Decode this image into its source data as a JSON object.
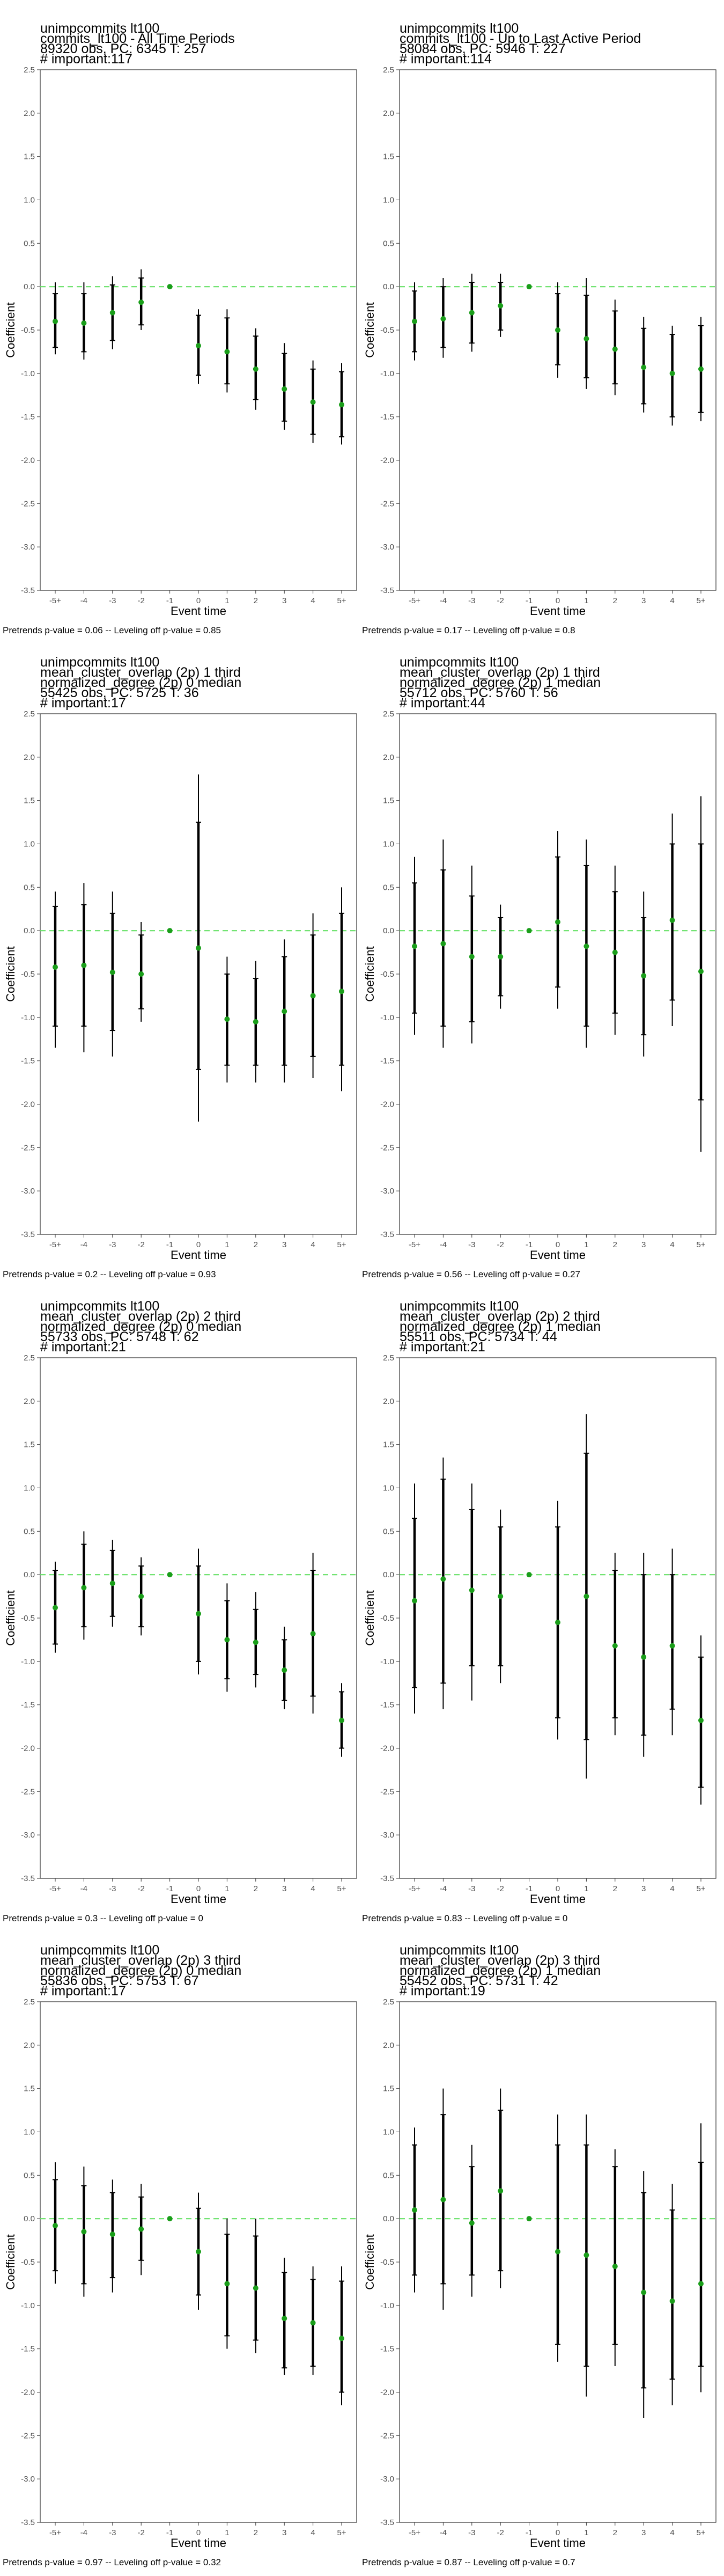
{
  "figure": {
    "xlabel": "Event time",
    "ylabel": "Coefficient"
  },
  "chart_data": [
    {
      "type": "scatter",
      "title_lines": [
        " unimpcommits lt100",
        "commits_lt100 - All Time Periods",
        "89320 obs, PC: 6345 T: 257",
        "# important:117"
      ],
      "caption": "Pretrends p-value = 0.06 -- Leveling off p-value = 0.85",
      "categories": [
        "-5+",
        "-4",
        "-3",
        "-2",
        "-1",
        "0",
        "1",
        "2",
        "3",
        "4",
        "5+"
      ],
      "estimates": [
        -0.4,
        -0.42,
        -0.3,
        -0.18,
        0.0,
        -0.68,
        -0.75,
        -0.95,
        -1.18,
        -1.33,
        -1.36
      ],
      "ci_outer_low": [
        -0.78,
        -0.84,
        -0.72,
        -0.5,
        null,
        -1.12,
        -1.22,
        -1.42,
        -1.65,
        -1.8,
        -1.82
      ],
      "ci_outer_high": [
        0.05,
        0.05,
        0.12,
        0.2,
        null,
        -0.26,
        -0.26,
        -0.48,
        -0.65,
        -0.85,
        -0.88
      ],
      "ci_inner_low": [
        -0.7,
        -0.75,
        -0.62,
        -0.44,
        null,
        -1.02,
        -1.12,
        -1.3,
        -1.55,
        -1.7,
        -1.73
      ],
      "ci_inner_high": [
        -0.08,
        -0.08,
        0.02,
        0.1,
        null,
        -0.33,
        -0.36,
        -0.57,
        -0.77,
        -0.95,
        -0.98
      ],
      "ylim": [
        -3.5,
        2.5
      ],
      "yticks": [
        "2.5",
        "2.0",
        "1.5",
        "1.0",
        "0.5",
        "0.0",
        "-0.5",
        "-1.0",
        "-1.5",
        "-2.0",
        "-2.5",
        "-3.0",
        "-3.5"
      ],
      "reference_line_y": 0,
      "colors": {
        "point": "#1a9e1a",
        "ci": "#000000",
        "reference": "#66e066"
      }
    },
    {
      "type": "scatter",
      "title_lines": [
        " unimpcommits lt100",
        "commits_lt100 - Up to Last Active Period",
        "58084 obs, PC: 5946 T: 227",
        "# important:114"
      ],
      "caption": "Pretrends p-value = 0.17 -- Leveling off p-value = 0.8",
      "categories": [
        "-5+",
        "-4",
        "-3",
        "-2",
        "-1",
        "0",
        "1",
        "2",
        "3",
        "4",
        "5+"
      ],
      "estimates": [
        -0.4,
        -0.37,
        -0.3,
        -0.22,
        0.0,
        -0.5,
        -0.6,
        -0.72,
        -0.93,
        -1.0,
        -0.95
      ],
      "ci_outer_low": [
        -0.85,
        -0.82,
        -0.75,
        -0.58,
        null,
        -1.05,
        -1.18,
        -1.25,
        -1.45,
        -1.6,
        -1.55
      ],
      "ci_outer_high": [
        0.05,
        0.1,
        0.15,
        0.15,
        null,
        0.05,
        0.1,
        -0.15,
        -0.35,
        -0.45,
        -0.35
      ],
      "ci_inner_low": [
        -0.75,
        -0.7,
        -0.65,
        -0.5,
        null,
        -0.9,
        -1.05,
        -1.12,
        -1.35,
        -1.5,
        -1.45
      ],
      "ci_inner_high": [
        -0.05,
        0.0,
        0.05,
        0.05,
        null,
        -0.08,
        -0.1,
        -0.28,
        -0.48,
        -0.55,
        -0.45
      ],
      "ylim": [
        -3.5,
        2.5
      ],
      "yticks": [
        "2.5",
        "2.0",
        "1.5",
        "1.0",
        "0.5",
        "0.0",
        "-0.5",
        "-1.0",
        "-1.5",
        "-2.0",
        "-2.5",
        "-3.0",
        "-3.5"
      ],
      "reference_line_y": 0,
      "colors": {
        "point": "#1a9e1a",
        "ci": "#000000",
        "reference": "#66e066"
      }
    },
    {
      "type": "scatter",
      "title_lines": [
        " unimpcommits lt100",
        "mean_cluster_overlap (2p) 1 third",
        "normalized_degree (2p) 0 median",
        "55425 obs, PC: 5725 T: 36",
        "# important:17"
      ],
      "caption": "Pretrends p-value = 0.2 -- Leveling off p-value = 0.93",
      "categories": [
        "-5+",
        "-4",
        "-3",
        "-2",
        "-1",
        "0",
        "1",
        "2",
        "3",
        "4",
        "5+"
      ],
      "estimates": [
        -0.42,
        -0.4,
        -0.48,
        -0.5,
        0.0,
        -0.2,
        -1.02,
        -1.05,
        -0.93,
        -0.75,
        -0.7
      ],
      "ci_outer_low": [
        -1.35,
        -1.4,
        -1.45,
        -1.05,
        null,
        -2.2,
        -1.75,
        -1.75,
        -1.75,
        -1.7,
        -1.85
      ],
      "ci_outer_high": [
        0.45,
        0.55,
        0.45,
        0.1,
        null,
        1.8,
        -0.3,
        -0.35,
        -0.1,
        0.2,
        0.5
      ],
      "ci_inner_low": [
        -1.1,
        -1.1,
        -1.15,
        -0.9,
        null,
        -1.6,
        -1.55,
        -1.55,
        -1.55,
        -1.45,
        -1.55
      ],
      "ci_inner_high": [
        0.28,
        0.3,
        0.2,
        -0.05,
        null,
        1.25,
        -0.5,
        -0.55,
        -0.3,
        -0.05,
        0.2
      ],
      "ylim": [
        -3.5,
        2.5
      ],
      "yticks": [
        "2.5",
        "2.0",
        "1.5",
        "1.0",
        "0.5",
        "0.0",
        "-0.5",
        "-1.0",
        "-1.5",
        "-2.0",
        "-2.5",
        "-3.0",
        "-3.5"
      ],
      "reference_line_y": 0,
      "colors": {
        "point": "#1a9e1a",
        "ci": "#000000",
        "reference": "#66e066"
      }
    },
    {
      "type": "scatter",
      "title_lines": [
        " unimpcommits lt100",
        "mean_cluster_overlap (2p) 1 third",
        "normalized_degree (2p) 1 median",
        "55712 obs, PC: 5760 T: 56",
        "# important:44"
      ],
      "caption": "Pretrends p-value = 0.56 -- Leveling off p-value = 0.27",
      "categories": [
        "-5+",
        "-4",
        "-3",
        "-2",
        "-1",
        "0",
        "1",
        "2",
        "3",
        "4",
        "5+"
      ],
      "estimates": [
        -0.18,
        -0.15,
        -0.3,
        -0.3,
        0.0,
        0.1,
        -0.18,
        -0.25,
        -0.52,
        0.12,
        -0.47
      ],
      "ci_outer_low": [
        -1.2,
        -1.35,
        -1.3,
        -0.9,
        null,
        -0.9,
        -1.35,
        -1.2,
        -1.45,
        -1.1,
        -2.55
      ],
      "ci_outer_high": [
        0.85,
        1.05,
        0.75,
        0.3,
        null,
        1.15,
        1.05,
        0.75,
        0.45,
        1.35,
        1.55
      ],
      "ci_inner_low": [
        -0.95,
        -1.1,
        -1.05,
        -0.75,
        null,
        -0.65,
        -1.1,
        -0.95,
        -1.2,
        -0.8,
        -1.95
      ],
      "ci_inner_high": [
        0.55,
        0.7,
        0.4,
        0.15,
        null,
        0.85,
        0.75,
        0.45,
        0.15,
        1.0,
        1.0
      ],
      "ylim": [
        -3.5,
        2.5
      ],
      "yticks": [
        "2.5",
        "2.0",
        "1.5",
        "1.0",
        "0.5",
        "0.0",
        "-0.5",
        "-1.0",
        "-1.5",
        "-2.0",
        "-2.5",
        "-3.0",
        "-3.5"
      ],
      "reference_line_y": 0,
      "colors": {
        "point": "#1a9e1a",
        "ci": "#000000",
        "reference": "#66e066"
      }
    },
    {
      "type": "scatter",
      "title_lines": [
        " unimpcommits lt100",
        "mean_cluster_overlap (2p) 2 third",
        "normalized_degree (2p) 0 median",
        "55733 obs, PC: 5748 T: 62",
        "# important:21"
      ],
      "caption": "Pretrends p-value = 0.3 -- Leveling off p-value = 0",
      "categories": [
        "-5+",
        "-4",
        "-3",
        "-2",
        "-1",
        "0",
        "1",
        "2",
        "3",
        "4",
        "5+"
      ],
      "estimates": [
        -0.38,
        -0.15,
        -0.1,
        -0.25,
        0.0,
        -0.45,
        -0.75,
        -0.78,
        -1.1,
        -0.68,
        -1.68
      ],
      "ci_outer_low": [
        -0.9,
        -0.75,
        -0.6,
        -0.7,
        null,
        -1.15,
        -1.35,
        -1.3,
        -1.55,
        -1.6,
        -2.1
      ],
      "ci_outer_high": [
        0.15,
        0.5,
        0.4,
        0.2,
        null,
        0.3,
        -0.1,
        -0.2,
        -0.6,
        0.25,
        -1.25
      ],
      "ci_inner_low": [
        -0.8,
        -0.6,
        -0.48,
        -0.6,
        null,
        -1.0,
        -1.2,
        -1.15,
        -1.45,
        -1.4,
        -2.0
      ],
      "ci_inner_high": [
        0.05,
        0.35,
        0.28,
        0.1,
        null,
        0.1,
        -0.3,
        -0.4,
        -0.75,
        0.05,
        -1.35
      ],
      "ylim": [
        -3.5,
        2.5
      ],
      "yticks": [
        "2.5",
        "2.0",
        "1.5",
        "1.0",
        "0.5",
        "0.0",
        "-0.5",
        "-1.0",
        "-1.5",
        "-2.0",
        "-2.5",
        "-3.0",
        "-3.5"
      ],
      "reference_line_y": 0,
      "colors": {
        "point": "#1a9e1a",
        "ci": "#000000",
        "reference": "#66e066"
      }
    },
    {
      "type": "scatter",
      "title_lines": [
        " unimpcommits lt100",
        "mean_cluster_overlap (2p) 2 third",
        "normalized_degree (2p) 1 median",
        "55511 obs, PC: 5734 T: 44",
        "# important:21"
      ],
      "caption": "Pretrends p-value = 0.83 -- Leveling off p-value = 0",
      "categories": [
        "-5+",
        "-4",
        "-3",
        "-2",
        "-1",
        "0",
        "1",
        "2",
        "3",
        "4",
        "5+"
      ],
      "estimates": [
        -0.3,
        -0.05,
        -0.18,
        -0.25,
        0.0,
        -0.55,
        -0.25,
        -0.82,
        -0.95,
        -0.82,
        -1.68
      ],
      "ci_outer_low": [
        -1.6,
        -1.55,
        -1.45,
        -1.25,
        null,
        -1.9,
        -2.35,
        -1.85,
        -2.1,
        -1.85,
        -2.65
      ],
      "ci_outer_high": [
        1.05,
        1.35,
        1.05,
        0.75,
        null,
        0.85,
        1.85,
        0.25,
        0.25,
        0.3,
        -0.7
      ],
      "ci_inner_low": [
        -1.3,
        -1.25,
        -1.05,
        -1.05,
        null,
        -1.65,
        -1.9,
        -1.65,
        -1.85,
        -1.55,
        -2.45
      ],
      "ci_inner_high": [
        0.65,
        1.1,
        0.75,
        0.55,
        null,
        0.55,
        1.4,
        0.05,
        0.0,
        0.0,
        -0.95
      ],
      "ylim": [
        -3.5,
        2.5
      ],
      "yticks": [
        "2.5",
        "2.0",
        "1.5",
        "1.0",
        "0.5",
        "0.0",
        "-0.5",
        "-1.0",
        "-1.5",
        "-2.0",
        "-2.5",
        "-3.0",
        "-3.5"
      ],
      "reference_line_y": 0,
      "colors": {
        "point": "#1a9e1a",
        "ci": "#000000",
        "reference": "#66e066"
      }
    },
    {
      "type": "scatter",
      "title_lines": [
        " unimpcommits lt100",
        "mean_cluster_overlap (2p) 3 third",
        "normalized_degree (2p) 0 median",
        "55836 obs, PC: 5753 T: 67",
        "# important:17"
      ],
      "caption": "Pretrends p-value = 0.97 -- Leveling off p-value = 0.32",
      "categories": [
        "-5+",
        "-4",
        "-3",
        "-2",
        "-1",
        "0",
        "1",
        "2",
        "3",
        "4",
        "5+"
      ],
      "estimates": [
        -0.08,
        -0.15,
        -0.18,
        -0.12,
        0.0,
        -0.38,
        -0.75,
        -0.8,
        -1.15,
        -1.2,
        -1.38
      ],
      "ci_outer_low": [
        -0.75,
        -0.9,
        -0.85,
        -0.65,
        null,
        -1.05,
        -1.5,
        -1.55,
        -1.8,
        -1.8,
        -2.15
      ],
      "ci_outer_high": [
        0.65,
        0.6,
        0.45,
        0.4,
        null,
        0.3,
        0.0,
        0.0,
        -0.45,
        -0.55,
        -0.55
      ],
      "ci_inner_low": [
        -0.6,
        -0.75,
        -0.68,
        -0.48,
        null,
        -0.88,
        -1.35,
        -1.4,
        -1.72,
        -1.7,
        -2.0
      ],
      "ci_inner_high": [
        0.45,
        0.38,
        0.3,
        0.25,
        null,
        0.12,
        -0.18,
        -0.2,
        -0.62,
        -0.7,
        -0.72
      ],
      "ylim": [
        -3.5,
        2.5
      ],
      "yticks": [
        "2.5",
        "2.0",
        "1.5",
        "1.0",
        "0.5",
        "0.0",
        "-0.5",
        "-1.0",
        "-1.5",
        "-2.0",
        "-2.5",
        "-3.0",
        "-3.5"
      ],
      "reference_line_y": 0,
      "colors": {
        "point": "#1a9e1a",
        "ci": "#000000",
        "reference": "#66e066"
      }
    },
    {
      "type": "scatter",
      "title_lines": [
        " unimpcommits lt100",
        "mean_cluster_overlap (2p) 3 third",
        "normalized_degree (2p) 1 median",
        "55452 obs, PC: 5731 T: 42",
        "# important:19"
      ],
      "caption": "Pretrends p-value = 0.87 -- Leveling off p-value = 0.7",
      "categories": [
        "-5+",
        "-4",
        "-3",
        "-2",
        "-1",
        "0",
        "1",
        "2",
        "3",
        "4",
        "5+"
      ],
      "estimates": [
        0.1,
        0.22,
        -0.05,
        0.32,
        0.0,
        -0.38,
        -0.42,
        -0.55,
        -0.85,
        -0.95,
        -0.75
      ],
      "ci_outer_low": [
        -0.85,
        -1.05,
        -0.9,
        -0.8,
        null,
        -1.65,
        -2.05,
        -1.7,
        -2.3,
        -2.15,
        -2.0
      ],
      "ci_outer_high": [
        1.05,
        1.5,
        0.85,
        1.5,
        null,
        1.2,
        1.2,
        0.8,
        0.55,
        0.4,
        1.1
      ],
      "ci_inner_low": [
        -0.65,
        -0.75,
        -0.65,
        -0.6,
        null,
        -1.45,
        -1.7,
        -1.45,
        -1.95,
        -1.85,
        -1.7
      ],
      "ci_inner_high": [
        0.85,
        1.2,
        0.6,
        1.25,
        null,
        0.85,
        0.85,
        0.6,
        0.3,
        0.1,
        0.65
      ],
      "ylim": [
        -3.5,
        2.5
      ],
      "yticks": [
        "2.5",
        "2.0",
        "1.5",
        "1.0",
        "0.5",
        "0.0",
        "-0.5",
        "-1.0",
        "-1.5",
        "-2.0",
        "-2.5",
        "-3.0",
        "-3.5"
      ],
      "reference_line_y": 0,
      "colors": {
        "point": "#1a9e1a",
        "ci": "#000000",
        "reference": "#66e066"
      }
    }
  ]
}
